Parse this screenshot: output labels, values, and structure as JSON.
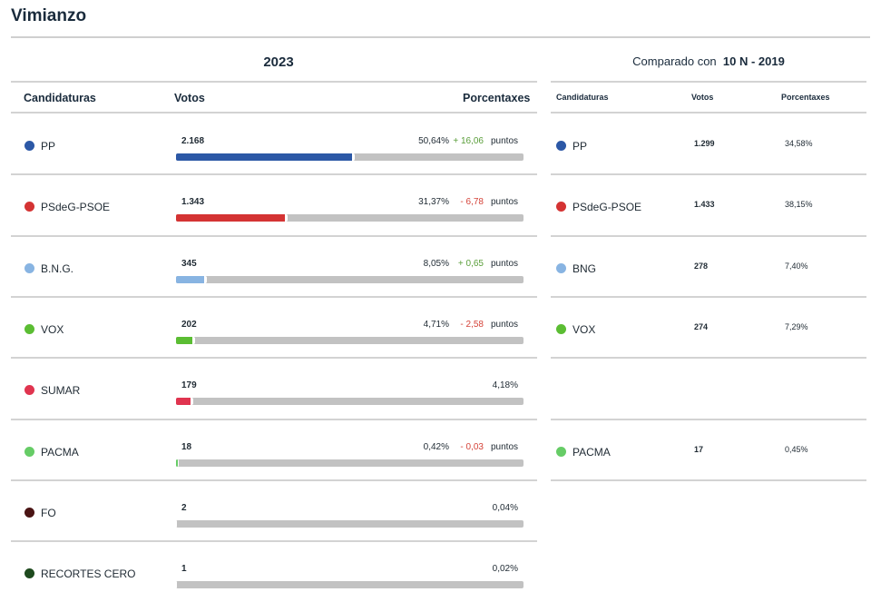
{
  "title": "Vimianzo",
  "current": {
    "year": "2023",
    "headers": {
      "candidaturas": "Candidaturas",
      "votos": "Votos",
      "porcentaxes": "Porcentaxes"
    },
    "puntos_label": "puntos",
    "rows": [
      {
        "name": "PP",
        "votes": "2.168",
        "pct": "50,64%",
        "pct_value": 50.64,
        "delta": "+ 16,06",
        "delta_sign": "up",
        "color": "#2c58a6"
      },
      {
        "name": "PSdeG-PSOE",
        "votes": "1.343",
        "pct": "31,37%",
        "pct_value": 31.37,
        "delta": "- 6,78",
        "delta_sign": "down",
        "color": "#d43333"
      },
      {
        "name": "B.N.G.",
        "votes": "345",
        "pct": "8,05%",
        "pct_value": 8.05,
        "delta": "+ 0,65",
        "delta_sign": "up",
        "color": "#88b4e2"
      },
      {
        "name": "VOX",
        "votes": "202",
        "pct": "4,71%",
        "pct_value": 4.71,
        "delta": "- 2,58",
        "delta_sign": "down",
        "color": "#5bbd33"
      },
      {
        "name": "SUMAR",
        "votes": "179",
        "pct": "4,18%",
        "pct_value": 4.18,
        "delta": "",
        "delta_sign": "",
        "color": "#e0344f"
      },
      {
        "name": "PACMA",
        "votes": "18",
        "pct": "0,42%",
        "pct_value": 0.42,
        "delta": "- 0,03",
        "delta_sign": "down",
        "color": "#66cc66"
      },
      {
        "name": "FO",
        "votes": "2",
        "pct": "0,04%",
        "pct_value": 0.04,
        "delta": "",
        "delta_sign": "",
        "color": "#4a1414"
      },
      {
        "name": "RECORTES CERO",
        "votes": "1",
        "pct": "0,02%",
        "pct_value": 0.02,
        "delta": "",
        "delta_sign": "",
        "color": "#1e4a1e"
      }
    ]
  },
  "comparison": {
    "prefix": "Comparado con",
    "election": "10 N - 2019",
    "headers": {
      "candidaturas": "Candidaturas",
      "votos": "Votos",
      "porcentaxes": "Porcentaxes"
    },
    "rows": [
      {
        "name": "PP",
        "votes": "1.299",
        "pct": "34,58%",
        "color": "#2c58a6"
      },
      {
        "name": "PSdeG-PSOE",
        "votes": "1.433",
        "pct": "38,15%",
        "color": "#d43333"
      },
      {
        "name": "BNG",
        "votes": "278",
        "pct": "7,40%",
        "color": "#88b4e2"
      },
      {
        "name": "VOX",
        "votes": "274",
        "pct": "7,29%",
        "color": "#5bbd33"
      },
      null,
      {
        "name": "PACMA",
        "votes": "17",
        "pct": "0,45%",
        "color": "#66cc66"
      }
    ]
  },
  "colors": {
    "up": "#5a9e3a",
    "down": "#d5443a",
    "track": "#c2c2c2"
  }
}
